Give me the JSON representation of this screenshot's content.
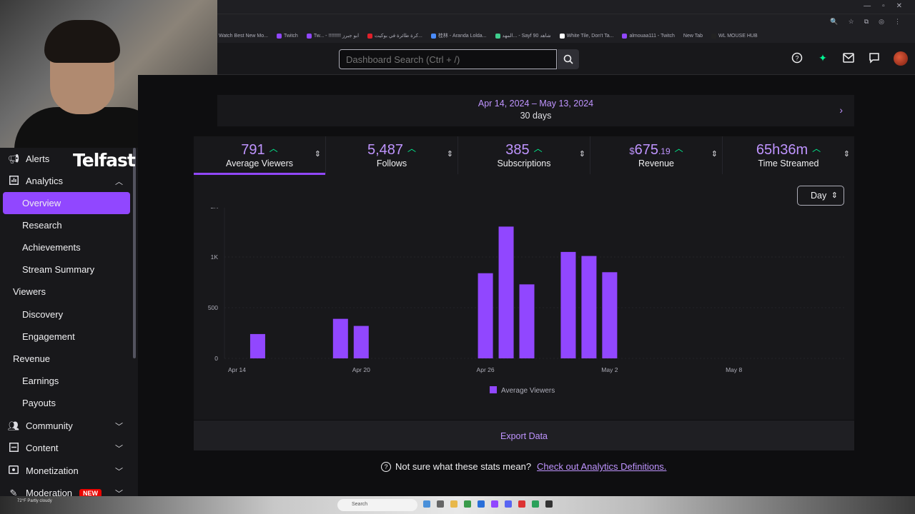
{
  "browser": {
    "bookmarks": [
      "Watch Best New Mo...",
      "Twitch",
      "Tw... - !!!!!!!!! ابو جبرز",
      "كرة طائرة في بوكيت...",
      "桂林 - Aranda Lolda...",
      "المهد... - Sayf 90 شاهد",
      "White Tile, Don't Ta...",
      "almouaa111 - Twitch",
      "New Tab",
      "WL MOUSE HUB"
    ]
  },
  "search": {
    "placeholder": "Dashboard Search (Ctrl + /)"
  },
  "brand": {
    "logo_text": "Telfast"
  },
  "sidebar": {
    "items": [
      {
        "label": "Alerts",
        "icon": "megaphone-icon"
      },
      {
        "label": "Analytics",
        "icon": "analytics-icon"
      },
      {
        "label": "Overview"
      },
      {
        "label": "Research"
      },
      {
        "label": "Achievements"
      },
      {
        "label": "Stream Summary"
      },
      {
        "label": "Viewers"
      },
      {
        "label": "Discovery"
      },
      {
        "label": "Engagement"
      },
      {
        "label": "Revenue"
      },
      {
        "label": "Earnings"
      },
      {
        "label": "Payouts"
      },
      {
        "label": "Community",
        "icon": "community-icon"
      },
      {
        "label": "Content",
        "icon": "content-icon"
      },
      {
        "label": "Monetization",
        "icon": "monetization-icon"
      },
      {
        "label": "Moderation",
        "icon": "moderation-icon",
        "badge": "NEW"
      }
    ]
  },
  "date_range": {
    "range": "Apr 14, 2024 – May 13, 2024",
    "length": "30 days"
  },
  "stats": [
    {
      "value": "791",
      "label": "Average Viewers"
    },
    {
      "value": "5,487",
      "label": "Follows"
    },
    {
      "value": "385",
      "label": "Subscriptions"
    },
    {
      "currency": "$",
      "value": "675",
      "cents": ".19",
      "label": "Revenue"
    },
    {
      "value": "65h36m",
      "label": "Time Streamed"
    }
  ],
  "granularity": {
    "selected": "Day"
  },
  "chart_data": {
    "type": "bar",
    "x_tick_labels": [
      "Apr 14",
      "Apr 20",
      "Apr 26",
      "May 2",
      "May 8"
    ],
    "y_tick_labels": [
      "0",
      "500",
      "1K",
      "2K"
    ],
    "ylim": [
      0,
      1500
    ],
    "categories": [
      "Apr 14",
      "Apr 15",
      "Apr 16",
      "Apr 17",
      "Apr 18",
      "Apr 19",
      "Apr 20",
      "Apr 21",
      "Apr 22",
      "Apr 23",
      "Apr 24",
      "Apr 25",
      "Apr 26",
      "Apr 27",
      "Apr 28",
      "Apr 29",
      "Apr 30",
      "May 1",
      "May 2",
      "May 3",
      "May 4",
      "May 5",
      "May 6",
      "May 7",
      "May 8",
      "May 9",
      "May 10",
      "May 11",
      "May 12",
      "May 13"
    ],
    "series": [
      {
        "name": "Average Viewers",
        "color": "#9147ff",
        "values": [
          0,
          240,
          0,
          0,
          0,
          390,
          320,
          0,
          0,
          0,
          0,
          0,
          840,
          1300,
          730,
          0,
          1050,
          1010,
          850,
          0,
          0,
          0,
          0,
          0,
          0,
          0,
          0,
          0,
          0,
          0
        ]
      }
    ],
    "legend": "bottom-center",
    "grid": true
  },
  "export": {
    "label": "Export Data"
  },
  "help": {
    "text": "Not sure what these stats mean?",
    "link": "Check out Analytics Definitions."
  },
  "taskbar": {
    "search_placeholder": "Search",
    "weather": "72°F Partly cloudy"
  }
}
